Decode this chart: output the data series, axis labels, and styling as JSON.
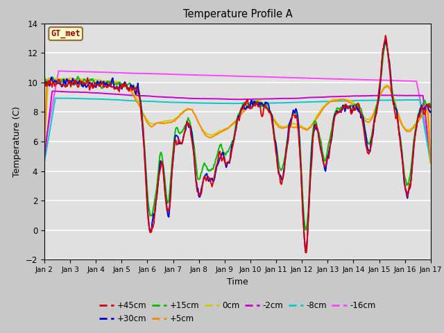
{
  "title": "Temperature Profile A",
  "xlabel": "Time",
  "ylabel": "Temperature (C)",
  "ylim": [
    -2,
    14
  ],
  "xlim": [
    0,
    15
  ],
  "annotation": "GT_met",
  "fig_bg": "#c8c8c8",
  "plot_bg": "#e0e0e0",
  "xtick_labels": [
    "Jan 2",
    "Jan 3",
    "Jan 4",
    "Jan 5",
    "Jan 6",
    "Jan 7",
    "Jan 8",
    "Jan 9",
    "Jan 10",
    "Jan 11",
    "Jan 12",
    "Jan 13",
    "Jan 14",
    "Jan 15",
    "Jan 16",
    "Jan 17"
  ],
  "yticks": [
    -2,
    0,
    2,
    4,
    6,
    8,
    10,
    12,
    14
  ],
  "series_order": [
    "+45cm",
    "+30cm",
    "+15cm",
    "+5cm",
    "0cm",
    "-2cm",
    "-8cm",
    "-16cm"
  ],
  "colors": {
    "+45cm": "#dd0000",
    "+30cm": "#0000dd",
    "+15cm": "#00bb00",
    "+5cm": "#ff8800",
    "0cm": "#cccc00",
    "-2cm": "#cc00cc",
    "-8cm": "#00cccc",
    "-16cm": "#ff44ff"
  },
  "lw": 1.4
}
